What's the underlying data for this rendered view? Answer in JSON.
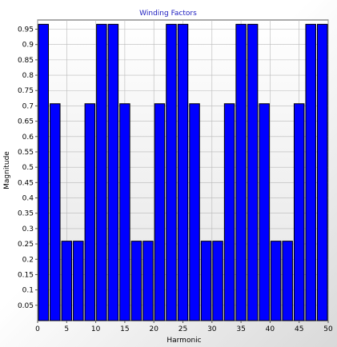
{
  "chart_data": {
    "type": "bar",
    "title": "Winding Factors",
    "xlabel": "Harmonic",
    "ylabel": "Magnitude",
    "x": [
      1,
      3,
      5,
      7,
      9,
      11,
      13,
      15,
      17,
      19,
      21,
      23,
      25,
      27,
      29,
      31,
      33,
      35,
      37,
      39,
      41,
      43,
      45,
      47,
      49
    ],
    "values": [
      0.966,
      0.707,
      0.259,
      0.259,
      0.707,
      0.966,
      0.966,
      0.707,
      0.259,
      0.259,
      0.707,
      0.966,
      0.966,
      0.707,
      0.259,
      0.259,
      0.707,
      0.966,
      0.966,
      0.707,
      0.259,
      0.259,
      0.707,
      0.966,
      0.966
    ],
    "xlim": [
      0,
      50
    ],
    "ylim": [
      0,
      0.98
    ],
    "xticks": [
      0,
      5,
      10,
      15,
      20,
      25,
      30,
      35,
      40,
      45,
      50
    ],
    "yticks": [
      0.05,
      0.1,
      0.15,
      0.2,
      0.25,
      0.3,
      0.35,
      0.4,
      0.45,
      0.5,
      0.55,
      0.6,
      0.65,
      0.7,
      0.75,
      0.8,
      0.85,
      0.9,
      0.95
    ],
    "ytick_labels": [
      "0.05",
      "0.1",
      "0.15",
      "0.2",
      "0.25",
      "0.3",
      "0.35",
      "0.4",
      "0.45",
      "0.5",
      "0.55",
      "0.6",
      "0.65",
      "0.7",
      "0.75",
      "0.8",
      "0.85",
      "0.9",
      "0.95"
    ],
    "grid": true,
    "bar_color": "#0000ff",
    "bar_edge_color": "#000000",
    "title_color": "#2020c0"
  }
}
